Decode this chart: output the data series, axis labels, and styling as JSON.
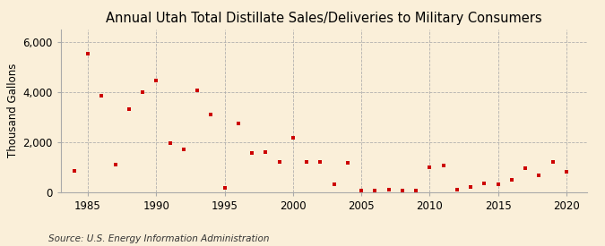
{
  "title": "Annual Utah Total Distillate Sales/Deliveries to Military Consumers",
  "ylabel": "Thousand Gallons",
  "source": "Source: U.S. Energy Information Administration",
  "background_color": "#faefd9",
  "marker_color": "#cc0000",
  "years": [
    1984,
    1985,
    1986,
    1987,
    1988,
    1989,
    1990,
    1991,
    1992,
    1993,
    1994,
    1995,
    1996,
    1997,
    1998,
    1999,
    2000,
    2001,
    2002,
    2003,
    2004,
    2005,
    2006,
    2007,
    2008,
    2009,
    2010,
    2011,
    2012,
    2013,
    2014,
    2015,
    2016,
    2017,
    2018,
    2019,
    2020
  ],
  "values": [
    850,
    5550,
    3850,
    1100,
    3300,
    4000,
    4450,
    1950,
    1700,
    4050,
    3100,
    150,
    2750,
    1550,
    1600,
    1200,
    2150,
    1200,
    1200,
    300,
    1150,
    50,
    50,
    100,
    50,
    50,
    1000,
    1050,
    100,
    200,
    350,
    300,
    500,
    950,
    650,
    1200,
    800
  ],
  "xlim": [
    1983,
    2021.5
  ],
  "ylim": [
    0,
    6500
  ],
  "yticks": [
    0,
    2000,
    4000,
    6000
  ],
  "ytick_labels": [
    "0",
    "2,000",
    "4,000",
    "6,000"
  ],
  "xticks": [
    1985,
    1990,
    1995,
    2000,
    2005,
    2010,
    2015,
    2020
  ],
  "grid_color": "#aaaaaa",
  "title_fontsize": 10.5,
  "axis_fontsize": 8.5,
  "source_fontsize": 7.5
}
